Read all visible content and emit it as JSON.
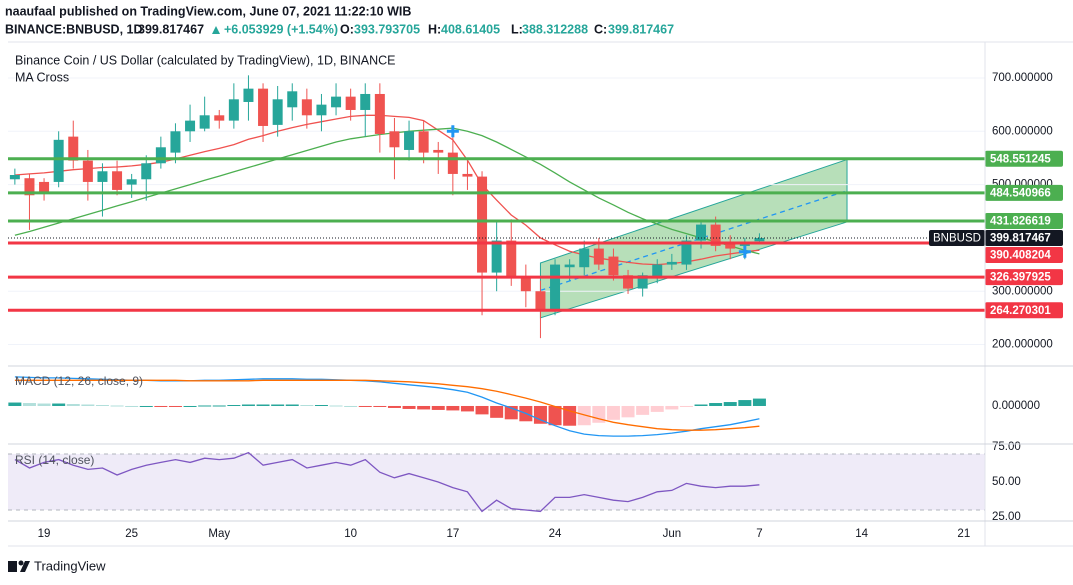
{
  "header": {
    "publisher": "naaufaal published on TradingView.com, June 07, 2021 11:22:10 WIB",
    "symbol": "BINANCE:BNBUSD, 1D",
    "change": "+6.053929 (+1.54%)",
    "ohlc_labels": [
      "O:",
      "H:",
      "L:",
      "C:"
    ]
  },
  "chart_data": [
    {
      "type": "candlestick",
      "title": "Binance Coin / US Dollar (calculated by TradingView), 1D, BINANCE",
      "subtitle": "MA Cross",
      "symbol_tag": "BNBUSD",
      "open": [
        510,
        512,
        505,
        505,
        590,
        545,
        505,
        525,
        500,
        510,
        540,
        560,
        600,
        605,
        630,
        620,
        655,
        680,
        612,
        645,
        660,
        630,
        645,
        665,
        640,
        670,
        600,
        565,
        600,
        565,
        560,
        520,
        515,
        335,
        395,
        325,
        300,
        265,
        345,
        345,
        380,
        365,
        330,
        305,
        325,
        350,
        350,
        395,
        425,
        390,
        385,
        393.793705
      ],
      "high": [
        530,
        520,
        512,
        600,
        620,
        565,
        540,
        545,
        520,
        555,
        590,
        615,
        650,
        665,
        640,
        690,
        705,
        690,
        685,
        690,
        680,
        670,
        690,
        680,
        690,
        690,
        625,
        620,
        620,
        580,
        590,
        545,
        525,
        430,
        435,
        350,
        320,
        360,
        360,
        395,
        400,
        380,
        340,
        335,
        360,
        370,
        405,
        430,
        440,
        405,
        400,
        408.61405
      ],
      "low": [
        500,
        415,
        470,
        495,
        530,
        470,
        440,
        480,
        475,
        470,
        530,
        540,
        580,
        600,
        605,
        605,
        620,
        580,
        590,
        620,
        605,
        600,
        630,
        620,
        590,
        560,
        510,
        545,
        540,
        520,
        480,
        490,
        255,
        300,
        310,
        270,
        212,
        255,
        320,
        330,
        340,
        320,
        295,
        290,
        315,
        340,
        340,
        380,
        375,
        360,
        360,
        388.312288
      ],
      "close": [
        518,
        480,
        484,
        584,
        545,
        505,
        525,
        490,
        510,
        540,
        570,
        600,
        620,
        630,
        620,
        660,
        680,
        610,
        660,
        675,
        630,
        650,
        665,
        640,
        670,
        595,
        570,
        600,
        560,
        560,
        520,
        515,
        335,
        395,
        325,
        300,
        265,
        350,
        350,
        380,
        350,
        330,
        305,
        330,
        350,
        355,
        395,
        425,
        385,
        380,
        392,
        399.817467
      ],
      "up_color": "#26a69a",
      "down_color": "#ef5350",
      "series": [
        {
          "color": "#f0524f",
          "values": [
            518,
            520,
            522,
            525,
            528,
            530,
            532,
            533,
            535,
            538,
            542,
            548,
            555,
            562,
            568,
            575,
            585,
            592,
            600,
            607,
            613,
            618,
            623,
            628,
            630,
            630,
            628,
            626,
            620,
            602,
            584,
            546,
            500,
            471,
            443,
            424,
            400,
            387,
            375,
            368,
            362,
            358,
            354,
            351,
            350,
            352,
            355,
            360,
            366,
            370,
            374,
            377
          ]
        },
        {
          "color": "#4caf50",
          "values": [
            405,
            412,
            420,
            428,
            436,
            444,
            452,
            460,
            468,
            476,
            484,
            492,
            500,
            508,
            516,
            524,
            532,
            540,
            548,
            556,
            564,
            572,
            580,
            586,
            590,
            594,
            597,
            600,
            602,
            604,
            606,
            600,
            592,
            580,
            566,
            552,
            538,
            522,
            505,
            490,
            475,
            462,
            448,
            436,
            426,
            416,
            408,
            400,
            393,
            385,
            377,
            370
          ]
        }
      ],
      "levels": {
        "values": [
          548.551245,
          484.540966,
          431.826619,
          390.408204,
          326.397925,
          264.270301
        ],
        "colors": [
          "#4caf50",
          "#4caf50",
          "#4caf50",
          "#f23645",
          "#f23645",
          "#f23645"
        ]
      },
      "channel": {
        "x": [
          36,
          57
        ],
        "upper": [
          353,
          547
        ],
        "lower": [
          250,
          430
        ],
        "color": "#4caf50",
        "mid_color": "#2196f3"
      },
      "signals": {
        "x": [
          30,
          50
        ],
        "values": [
          600,
          374
        ],
        "color": "#2196f3"
      },
      "ylim": [
        161.6,
        767.5
      ],
      "yticks": [
        {
          "value": 200,
          "label": "200.000000"
        },
        {
          "value": 300,
          "label": "300.000000"
        },
        {
          "value": 500,
          "label": "500.000000"
        },
        {
          "value": 600,
          "label": "600.000000"
        },
        {
          "value": 700,
          "label": "700.000000"
        }
      ],
      "xlim": [
        -0.47,
        66.45
      ],
      "xticks": [
        {
          "value": 2,
          "label": "19"
        },
        {
          "value": 8,
          "label": "25"
        },
        {
          "value": 14,
          "label": "May"
        },
        {
          "value": 23,
          "label": "10"
        },
        {
          "value": 30,
          "label": "17"
        },
        {
          "value": 37,
          "label": "24"
        },
        {
          "value": 45,
          "label": "Jun"
        },
        {
          "value": 51,
          "label": "7"
        },
        {
          "value": 58,
          "label": "14"
        },
        {
          "value": 65,
          "label": "21"
        }
      ],
      "grid": true
    },
    {
      "type": "macd",
      "title": "MACD (12, 26, close, 9)",
      "series": [
        {
          "color": "#2196f3",
          "values": [
            59,
            58,
            57,
            57,
            56,
            55,
            54,
            53,
            52,
            52,
            51,
            51,
            51,
            52,
            52,
            53,
            54,
            55,
            55,
            55,
            54,
            54,
            53,
            52,
            51,
            49,
            46,
            43,
            40,
            37,
            33,
            28,
            18,
            6,
            -4,
            -15,
            -28,
            -40,
            -50,
            -57,
            -60,
            -61,
            -61,
            -60,
            -58,
            -55,
            -51,
            -46,
            -42,
            -38,
            -32,
            -26
          ]
        },
        {
          "color": "#ff6d00",
          "values": [
            52,
            52,
            52,
            52,
            52,
            52,
            52,
            52,
            52,
            52,
            52,
            52,
            51,
            51,
            51,
            51,
            51,
            52,
            52,
            52,
            52,
            52,
            52,
            52,
            52,
            51,
            50,
            49,
            47,
            45,
            42,
            39,
            35,
            30,
            23,
            16,
            8,
            -1,
            -10,
            -18,
            -26,
            -33,
            -38,
            -42,
            -46,
            -48,
            -49,
            -49,
            -48,
            -46,
            -44,
            -41
          ]
        }
      ],
      "histogram": {
        "values": [
          7,
          6,
          5,
          5,
          4,
          3,
          2,
          1,
          0,
          0,
          -1,
          -1,
          0,
          1,
          1,
          2,
          3,
          3,
          3,
          3,
          2,
          2,
          1,
          0,
          -1,
          -2,
          -4,
          -6,
          -7,
          -8,
          -9,
          -11,
          -17,
          -24,
          -27,
          -31,
          -36,
          -39,
          -40,
          -39,
          -34,
          -28,
          -23,
          -18,
          -12,
          -7,
          -2,
          3,
          6,
          8,
          12,
          15
        ],
        "colors": [
          "#26a69a",
          "#b2dfdb",
          "#ffcdd2",
          "#ef5350"
        ]
      },
      "ylim": [
        -75,
        79
      ],
      "yticks": [
        {
          "value": 0,
          "label": "0.000000"
        }
      ]
    },
    {
      "type": "rsi",
      "title": "RSI (14, close)",
      "series": [
        {
          "color": "#7e57c2",
          "values": [
            66,
            60,
            64,
            66,
            62,
            59,
            60,
            55,
            59,
            62,
            64,
            66,
            64,
            67,
            66,
            67,
            71,
            62,
            64,
            66,
            60,
            62,
            64,
            62,
            66,
            57,
            53,
            56,
            53,
            50,
            46,
            43,
            29,
            37,
            31,
            30,
            29,
            39,
            39,
            41,
            39,
            37,
            36,
            39,
            43,
            44,
            49,
            47,
            46,
            47,
            47,
            48
          ]
        }
      ],
      "band": [
        30,
        70
      ],
      "band_color": "#7e57c2",
      "ylim": [
        22.9,
        76.4
      ],
      "yticks": [
        {
          "value": 75,
          "label": "75.00"
        },
        {
          "value": 50,
          "label": "50.00"
        },
        {
          "value": 25,
          "label": "25.00"
        }
      ]
    }
  ],
  "footer": {
    "brand": "TradingView"
  }
}
